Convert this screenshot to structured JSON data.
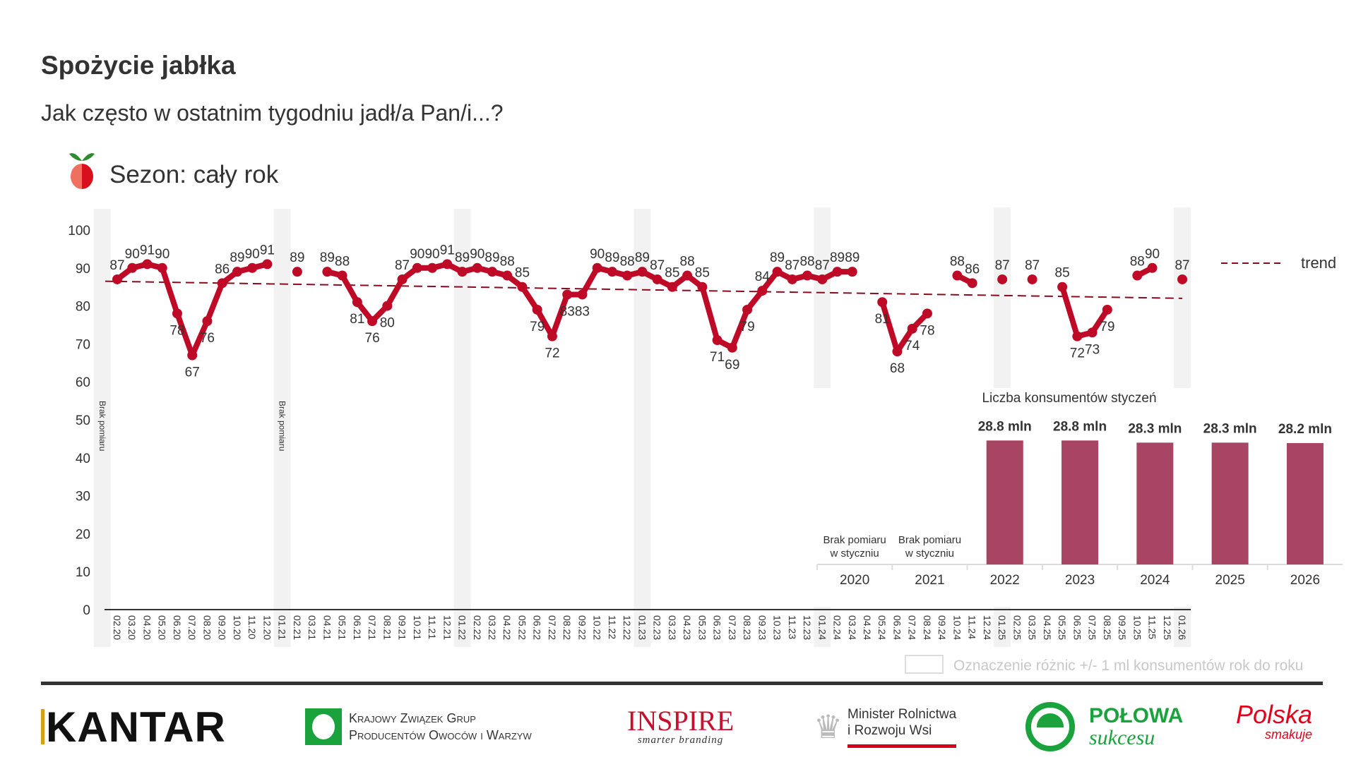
{
  "header": {
    "title": "Spożycie jabłka",
    "subtitle": "Jak często w ostatnim tygodniu jadł/a Pan/i...?",
    "season": "Sezon: cały rok"
  },
  "chart_data": [
    {
      "type": "line",
      "title": "Spożycie jabłka",
      "ylim": [
        0,
        100
      ],
      "yticks": [
        0,
        10,
        20,
        30,
        40,
        50,
        60,
        70,
        80,
        90,
        100
      ],
      "x": [
        "02.20",
        "03.20",
        "04.20",
        "05.20",
        "06.20",
        "07.20",
        "08.20",
        "09.20",
        "10.20",
        "11.20",
        "12.20",
        "01.21",
        "02.21",
        "03.21",
        "04.21",
        "05.21",
        "06.21",
        "07.21",
        "08.21",
        "09.21",
        "10.21",
        "11.21",
        "12.21",
        "01.22",
        "02.22",
        "03.22",
        "04.22",
        "05.22",
        "06.22",
        "07.22",
        "08.22",
        "09.22",
        "10.22",
        "11.22",
        "12.22",
        "01.23",
        "02.23",
        "03.23",
        "04.23",
        "05.23",
        "06.23",
        "07.23",
        "08.23",
        "09.23",
        "10.23",
        "11.23",
        "12.23",
        "01.24",
        "02.24",
        "03.24",
        "04.24",
        "05.24",
        "06.24",
        "07.24",
        "08.24",
        "09.24",
        "10.24",
        "11.24",
        "12.24",
        "01.25",
        "02.25",
        "03.25",
        "04.25",
        "05.25",
        "06.25",
        "07.25",
        "08.25",
        "09.25",
        "10.25",
        "11.25",
        "12.25",
        "01.26"
      ],
      "series": [
        {
          "name": "Spożycie",
          "color": "#be0a26",
          "values": [
            87,
            90,
            91,
            90,
            78,
            67,
            76,
            86,
            89,
            90,
            91,
            null,
            89,
            null,
            89,
            88,
            81,
            76,
            80,
            87,
            90,
            90,
            91,
            89,
            90,
            89,
            88,
            85,
            79,
            72,
            83,
            83,
            90,
            89,
            88,
            89,
            87,
            85,
            88,
            85,
            71,
            69,
            79,
            84,
            89,
            87,
            88,
            87,
            89,
            89,
            null,
            81,
            68,
            74,
            78,
            null,
            88,
            86,
            null,
            87,
            null,
            87,
            null,
            85,
            72,
            73,
            79,
            null,
            88,
            90,
            null,
            87
          ]
        }
      ],
      "trend": {
        "name": "trend",
        "start": 86.5,
        "end": 82,
        "color": "#8b0a1e"
      },
      "no_measure_label": "Brak pomiaru",
      "no_measure_months": [
        "01.20",
        "01.21"
      ],
      "highlight_months": [
        "01.20",
        "01.21",
        "01.22",
        "01.23",
        "01.24",
        "01.25",
        "01.26"
      ],
      "legend": {
        "trend": "trend",
        "highlight": "Oznaczenie różnic +/- 1 ml konsumentów rok do roku"
      }
    },
    {
      "type": "bar",
      "title": "Liczba konsumentów styczeń",
      "categories": [
        "2020",
        "2021",
        "2022",
        "2023",
        "2024",
        "2025",
        "2026"
      ],
      "values": [
        null,
        null,
        28.8,
        28.8,
        28.3,
        28.3,
        28.2
      ],
      "value_labels": [
        "",
        "",
        "28.8 mln",
        "28.8 mln",
        "28.3 mln",
        "28.3 mln",
        "28.2 mln"
      ],
      "missing_label": [
        "Brak pomiaru",
        "w styczniu"
      ],
      "unit": "mln",
      "color": "#a84464"
    }
  ],
  "logos": {
    "kantar": "KANTAR",
    "kzgp": [
      "Krajowy Związek Grup",
      "Producentów Owoców i Warzyw"
    ],
    "inspire": [
      "INSPIRE",
      "smarter branding"
    ],
    "minrol": [
      "Minister Rolnictwa",
      "i Rozwoju Wsi"
    ],
    "polowa": [
      "POŁOWA",
      "sukcesu"
    ],
    "polska": [
      "Polska",
      "smakuje"
    ]
  }
}
